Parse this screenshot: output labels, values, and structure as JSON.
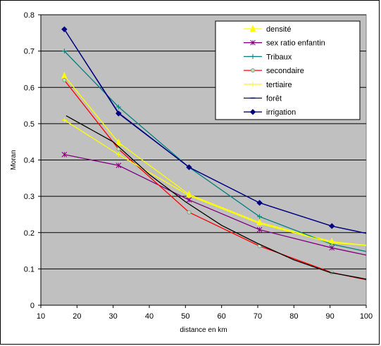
{
  "chart_data": {
    "type": "line",
    "title": "",
    "xlabel": "distance en km",
    "ylabel": "Moran",
    "xlim": [
      10,
      100
    ],
    "ylim": [
      0,
      0.8
    ],
    "x_ticks": [
      "10",
      "20",
      "30",
      "40",
      "50",
      "60",
      "70",
      "80",
      "90",
      "100"
    ],
    "y_ticks": [
      "0",
      "0.1",
      "0.2",
      "0.3",
      "0.4",
      "0.5",
      "0.6",
      "0.7",
      "0.8"
    ],
    "grid": "horizontal",
    "plot_background": "#c0c0c0",
    "legend_position": "top-right",
    "series": [
      {
        "name": "densité",
        "color": "#ffff00",
        "marker": "triangle",
        "x": [
          16.5,
          31.5,
          51,
          70.5,
          90.5,
          100
        ],
        "y": [
          0.632,
          0.448,
          0.305,
          0.228,
          0.175,
          0.165
        ]
      },
      {
        "name": "sex ratio enfantin",
        "color": "#800080",
        "marker": "star",
        "x": [
          16.5,
          31.5,
          51,
          70.5,
          90.5,
          100
        ],
        "y": [
          0.415,
          0.385,
          0.29,
          0.208,
          0.158,
          0.138
        ]
      },
      {
        "name": "Tribaux",
        "color": "#008080",
        "marker": "plus",
        "x": [
          16.5,
          31.5,
          51,
          70.5,
          90.5,
          100
        ],
        "y": [
          0.7,
          0.546,
          0.38,
          0.244,
          0.168,
          0.148
        ]
      },
      {
        "name": "secondaire",
        "color": "#ff0000",
        "marker": "circle",
        "x": [
          16.5,
          31.5,
          51,
          70.5,
          90.5,
          100
        ],
        "y": [
          0.62,
          0.43,
          0.256,
          0.163,
          0.09,
          0.07
        ]
      },
      {
        "name": "tertiaire",
        "color": "#ffff00",
        "marker": "plus",
        "x": [
          16.5,
          31.5,
          51,
          70.5,
          90.5,
          100
        ],
        "y": [
          0.51,
          0.415,
          0.302,
          0.225,
          0.172,
          0.165
        ]
      },
      {
        "name": "forêt",
        "color": "#000080",
        "marker": "dash",
        "x": [
          16.5,
          31.5,
          51,
          70.5,
          90.5,
          100
        ],
        "y": [
          0.76,
          0.53,
          0.38,
          0.282,
          0.218,
          0.198
        ]
      },
      {
        "name": "irrigation",
        "color": "#000080",
        "marker": "diamond",
        "x": [
          16.5,
          31.5,
          51,
          70.5,
          90.5,
          100
        ],
        "y": [
          0.76,
          0.528,
          0.38,
          0.282,
          0.218,
          0.198
        ]
      },
      {
        "color": "#000000",
        "marker": "none",
        "x": [
          17,
          30,
          40,
          50,
          60,
          70,
          80,
          90,
          100
        ],
        "y": [
          0.522,
          0.45,
          0.36,
          0.285,
          0.22,
          0.17,
          0.125,
          0.09,
          0.072
        ]
      }
    ]
  }
}
